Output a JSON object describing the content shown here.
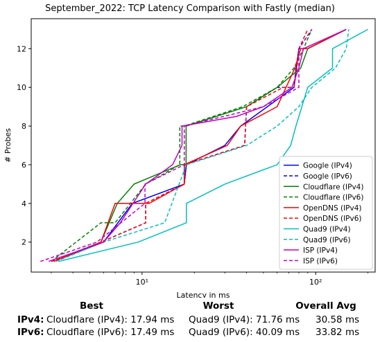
{
  "chart_data": {
    "type": "line",
    "title": "September_2022: TCP Latency Comparison with Fastly (median)",
    "xlabel": "Latency in ms",
    "ylabel": "# Probes",
    "xscale": "log",
    "xlim": [
      2.3,
      220
    ],
    "ylim": [
      0.45,
      13.55
    ],
    "xticks": [
      10,
      100
    ],
    "xtick_labels": [
      "10¹",
      "10²"
    ],
    "yticks": [
      2,
      4,
      6,
      8,
      10,
      12
    ],
    "grid": false,
    "legend_position": "lower-right",
    "series": [
      {
        "name": "Google (IPv4)",
        "color": "#0000ff",
        "dash": "solid",
        "x": [
          3.1,
          6.0,
          8.8,
          17.5,
          18.0,
          30.0,
          37.0,
          75.0,
          75.0,
          80.0,
          90.0,
          150.0
        ],
        "y": [
          1,
          2,
          4,
          5,
          6,
          7,
          8,
          10,
          10,
          12,
          12,
          13
        ]
      },
      {
        "name": "Google (IPv6)",
        "color": "#0000ff",
        "dash": "dashed",
        "x": [
          3.0,
          5.8,
          10.5,
          10.5,
          17.5,
          17.5,
          39.0,
          40.0,
          60.0,
          75.0,
          77.0,
          80.0,
          95.0
        ],
        "y": [
          1,
          2,
          3,
          4,
          5,
          6,
          7,
          9,
          10,
          10,
          11,
          12,
          13
        ]
      },
      {
        "name": "Cloudflare (IPv4)",
        "color": "#008000",
        "dash": "solid",
        "x": [
          3.1,
          5.8,
          7.2,
          9.0,
          16.6,
          17.94,
          17.94,
          40.0,
          60.0,
          82.0,
          90.0,
          150.0
        ],
        "y": [
          1,
          2,
          4,
          5,
          6,
          6,
          8,
          9,
          10,
          11,
          12,
          13
        ]
      },
      {
        "name": "Cloudflare (IPv6)",
        "color": "#008000",
        "dash": "dashed",
        "x": [
          3.0,
          5.8,
          7.0,
          10.5,
          16.5,
          16.5,
          17.49,
          38.0,
          38.0,
          60.0,
          75.0,
          85.0,
          95.0
        ],
        "y": [
          1,
          3,
          3,
          5,
          6,
          8,
          8,
          9,
          9,
          10,
          11,
          12,
          13
        ]
      },
      {
        "name": "OpenDNS (IPv4)",
        "color": "#ff0000",
        "dash": "solid",
        "x": [
          3.1,
          5.8,
          7.0,
          11.0,
          17.5,
          17.5,
          31.0,
          37.0,
          60.0,
          76.0,
          82.0,
          90.0,
          150.0
        ],
        "y": [
          1,
          2,
          4,
          4,
          5,
          6,
          7,
          8,
          9,
          11,
          12,
          12,
          13
        ]
      },
      {
        "name": "OpenDNS (IPv6)",
        "color": "#ff0000",
        "dash": "dashed",
        "x": [
          3.0,
          5.8,
          10.5,
          10.5,
          17.6,
          17.6,
          39.0,
          40.0,
          65.0,
          75.0,
          78.0,
          80.0,
          90.0
        ],
        "y": [
          1,
          2,
          3,
          4,
          5,
          6,
          7,
          9,
          10,
          10,
          11,
          12,
          13
        ]
      },
      {
        "name": "Quad9 (IPv4)",
        "color": "#00bfbf",
        "dash": "solid",
        "x": [
          3.3,
          9.5,
          18.0,
          18.0,
          30.0,
          60.0,
          71.76,
          77.0,
          90.0,
          125.0,
          125.0,
          200.0
        ],
        "y": [
          1,
          2,
          3,
          4,
          5,
          6,
          7,
          8,
          10,
          11,
          12,
          13
        ]
      },
      {
        "name": "Quad9 (IPv6)",
        "color": "#00bfbf",
        "dash": "dashed",
        "x": [
          3.2,
          6.0,
          13.5,
          18.0,
          40.09,
          60.0,
          80.0,
          95.0,
          130.0,
          150.0,
          155.0
        ],
        "y": [
          1,
          2,
          3,
          6,
          7,
          8,
          9,
          10,
          11,
          12,
          13
        ]
      },
      {
        "name": "ISP (IPv4)",
        "color": "#bf00bf",
        "dash": "solid",
        "x": [
          2.9,
          6.0,
          7.5,
          10.5,
          15.0,
          17.0,
          17.0,
          35.0,
          50.0,
          73.0,
          80.0,
          85.0,
          150.0
        ],
        "y": [
          1,
          2,
          3,
          5,
          6,
          7,
          8,
          8.5,
          9,
          10,
          11,
          12,
          13
        ]
      },
      {
        "name": "ISP (IPv6)",
        "color": "#bf00bf",
        "dash": "dashed",
        "x": [
          2.6,
          5.5,
          10.4,
          10.4,
          17.5,
          17.5,
          50.0,
          80.0,
          80.0,
          95.0
        ],
        "y": [
          1,
          2,
          4,
          5,
          6,
          8,
          9,
          10,
          12,
          13
        ]
      }
    ]
  },
  "summary": {
    "headers": {
      "best": "Best",
      "worst": "Worst",
      "avg": "Overall Avg"
    },
    "rows": [
      {
        "label": "IPv4:",
        "best": "Cloudflare (IPv4): 17.94 ms",
        "worst": "Quad9 (IPv4): 71.76 ms",
        "avg": "30.58 ms"
      },
      {
        "label": "IPv6:",
        "best": "Cloudflare (IPv6): 17.49 ms",
        "worst": "Quad9 (IPv6): 40.09 ms",
        "avg": "33.82 ms"
      }
    ]
  }
}
